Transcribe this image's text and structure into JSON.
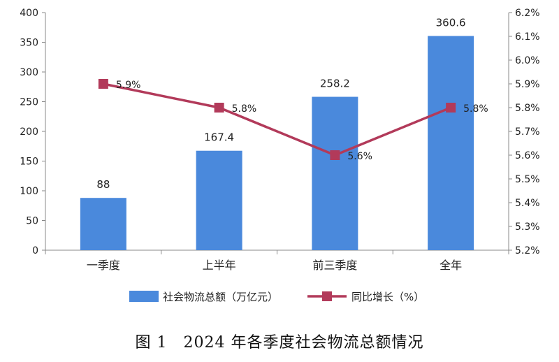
{
  "caption": "图 1　2024 年各季度社会物流总额情况",
  "chart_data": {
    "type": "bar",
    "categories": [
      "一季度",
      "上半年",
      "前三季度",
      "全年"
    ],
    "series": [
      {
        "name": "社会物流总额（万亿元）",
        "type": "bar",
        "axis": "left",
        "color": "#4a89dc",
        "values": [
          88,
          167.4,
          258.2,
          360.6
        ],
        "labels": [
          "88",
          "167.4",
          "258.2",
          "360.6"
        ]
      },
      {
        "name": "同比增长（%）",
        "type": "line",
        "axis": "right",
        "color": "#b23a5a",
        "values": [
          5.9,
          5.8,
          5.6,
          5.8
        ],
        "labels": [
          "5.9%",
          "5.8%",
          "5.6%",
          "5.8%"
        ]
      }
    ],
    "y_left": {
      "min": 0,
      "max": 400,
      "ticks": [
        "0",
        "50",
        "100",
        "150",
        "200",
        "250",
        "300",
        "350",
        "400"
      ]
    },
    "y_right": {
      "min": 5.2,
      "max": 6.2,
      "ticks": [
        "5.2%",
        "5.3%",
        "5.4%",
        "5.5%",
        "5.6%",
        "5.7%",
        "5.8%",
        "5.9%",
        "6.0%",
        "6.1%",
        "6.2%"
      ]
    },
    "grid": false,
    "legend_position": "bottom"
  }
}
